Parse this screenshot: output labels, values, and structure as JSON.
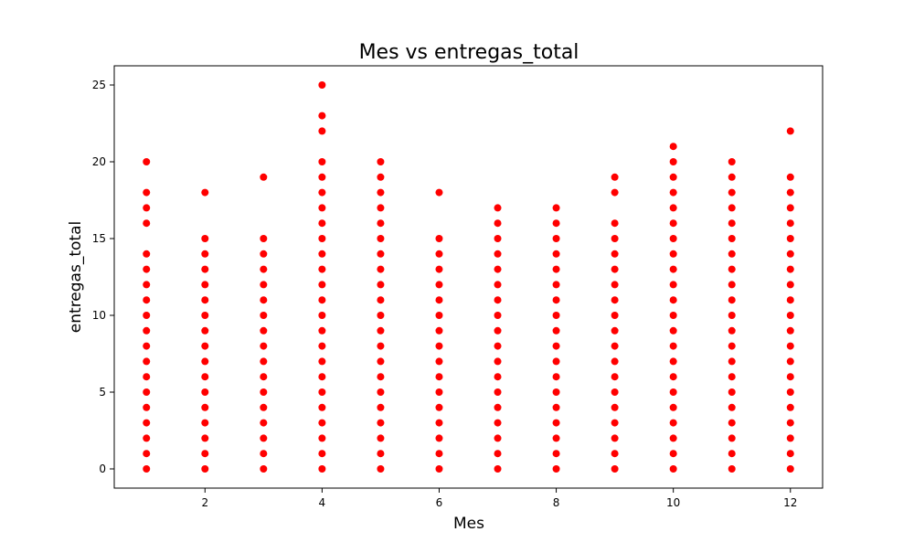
{
  "chart_data": {
    "type": "scatter",
    "title": "Mes vs entregas_total",
    "xlabel": "Mes",
    "ylabel": "entregas_total",
    "xlim": [
      0.45,
      12.55
    ],
    "ylim": [
      -1.25,
      26.25
    ],
    "xticks": [
      2,
      4,
      6,
      8,
      10,
      12
    ],
    "yticks": [
      0,
      5,
      10,
      15,
      20,
      25
    ],
    "grid": false,
    "marker_color": "#ff0000",
    "series": [
      {
        "points": [
          {
            "x": 1,
            "y": [
              0,
              1,
              2,
              3,
              4,
              5,
              6,
              7,
              8,
              9,
              10,
              11,
              12,
              13,
              14,
              16,
              17,
              18,
              20
            ]
          },
          {
            "x": 2,
            "y": [
              0,
              1,
              2,
              3,
              4,
              5,
              6,
              7,
              8,
              9,
              10,
              11,
              12,
              13,
              14,
              15,
              18
            ]
          },
          {
            "x": 3,
            "y": [
              0,
              1,
              2,
              3,
              4,
              5,
              6,
              7,
              8,
              9,
              10,
              11,
              12,
              13,
              14,
              15,
              19
            ]
          },
          {
            "x": 4,
            "y": [
              0,
              1,
              2,
              3,
              4,
              5,
              6,
              7,
              8,
              9,
              10,
              11,
              12,
              13,
              14,
              15,
              16,
              17,
              18,
              19,
              20,
              22,
              23,
              25
            ]
          },
          {
            "x": 5,
            "y": [
              0,
              1,
              2,
              3,
              4,
              5,
              6,
              7,
              8,
              9,
              10,
              11,
              12,
              13,
              14,
              15,
              16,
              17,
              18,
              19,
              20
            ]
          },
          {
            "x": 6,
            "y": [
              0,
              1,
              2,
              3,
              4,
              5,
              6,
              7,
              8,
              9,
              10,
              11,
              12,
              13,
              14,
              15,
              18
            ]
          },
          {
            "x": 7,
            "y": [
              0,
              1,
              2,
              3,
              4,
              5,
              6,
              7,
              8,
              9,
              10,
              11,
              12,
              13,
              14,
              15,
              16,
              17
            ]
          },
          {
            "x": 8,
            "y": [
              0,
              1,
              2,
              3,
              4,
              5,
              6,
              7,
              8,
              9,
              10,
              11,
              12,
              13,
              14,
              15,
              16,
              17
            ]
          },
          {
            "x": 9,
            "y": [
              0,
              1,
              2,
              3,
              4,
              5,
              6,
              7,
              8,
              9,
              10,
              11,
              12,
              13,
              14,
              15,
              16,
              18,
              19
            ]
          },
          {
            "x": 10,
            "y": [
              0,
              1,
              2,
              3,
              4,
              5,
              6,
              7,
              8,
              9,
              10,
              11,
              12,
              13,
              14,
              15,
              16,
              17,
              18,
              19,
              20,
              21
            ]
          },
          {
            "x": 11,
            "y": [
              0,
              1,
              2,
              3,
              4,
              5,
              6,
              7,
              8,
              9,
              10,
              11,
              12,
              13,
              14,
              15,
              16,
              17,
              18,
              19,
              20
            ]
          },
          {
            "x": 12,
            "y": [
              0,
              1,
              2,
              3,
              4,
              5,
              6,
              7,
              8,
              9,
              10,
              11,
              12,
              13,
              14,
              15,
              16,
              17,
              18,
              19,
              22
            ]
          }
        ]
      }
    ]
  }
}
